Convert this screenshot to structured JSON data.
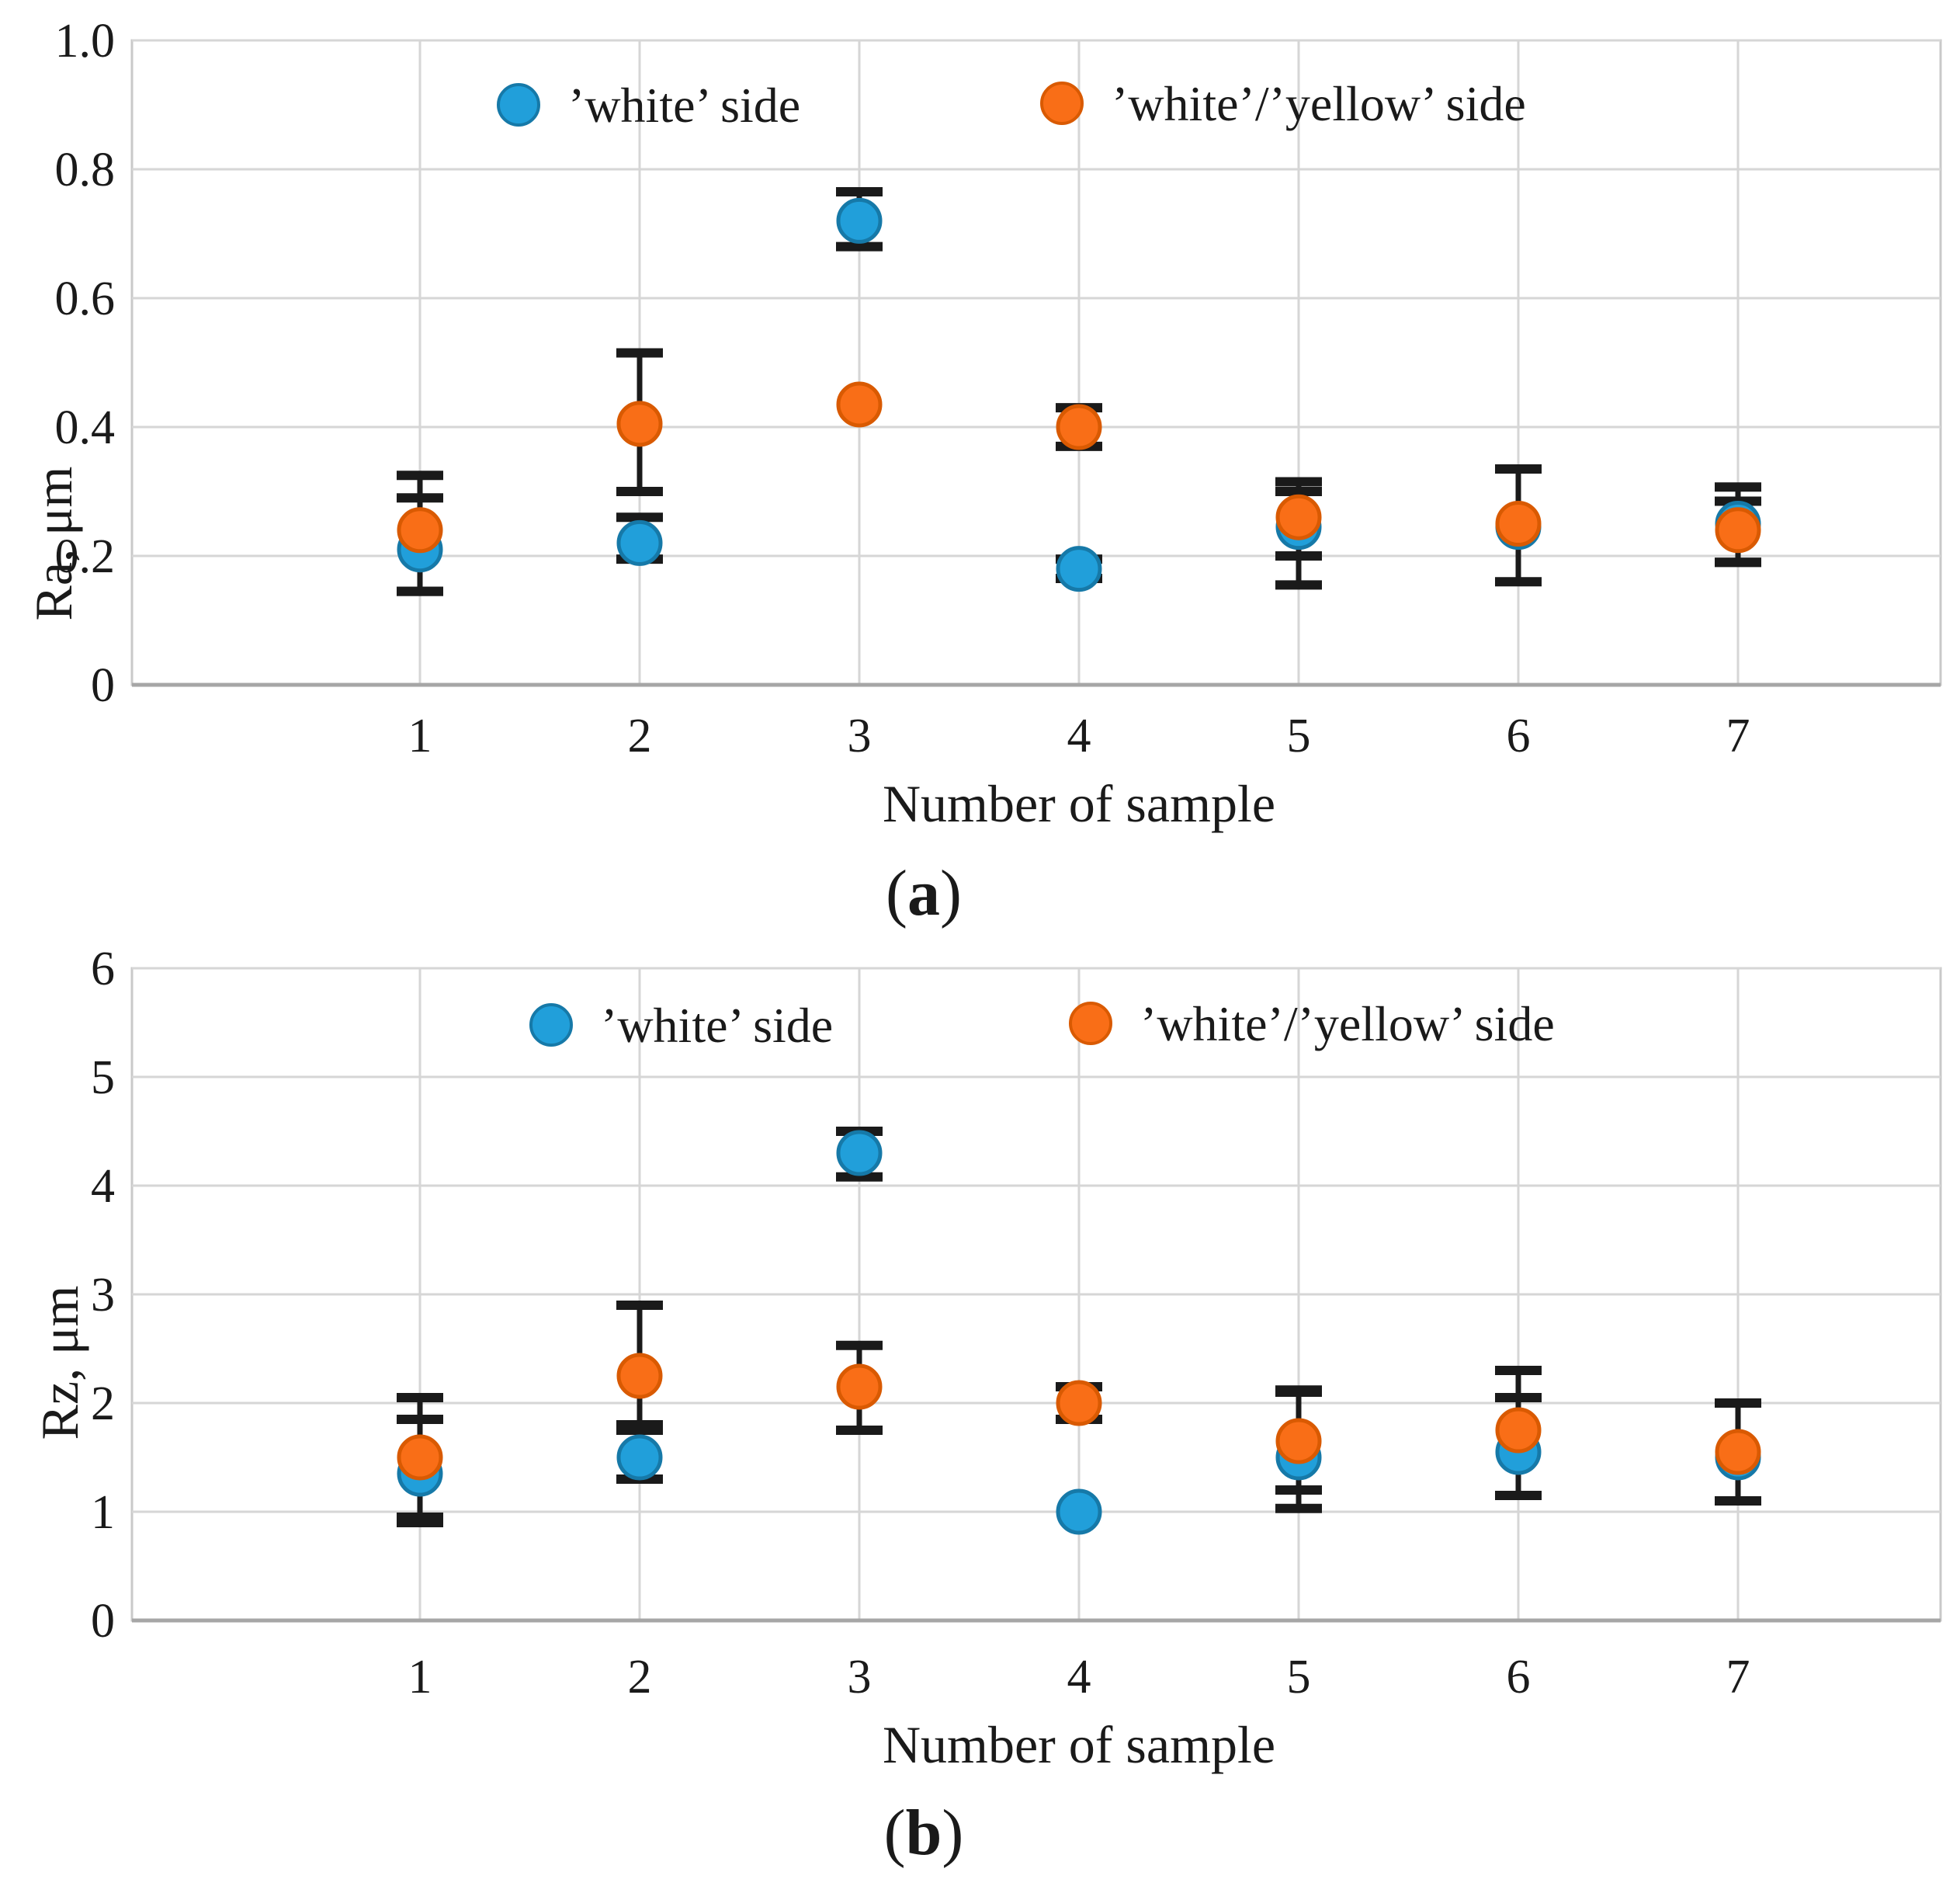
{
  "figure": {
    "background": "#FFFFFF",
    "colors": {
      "white_side": "#219FDA",
      "white_side_stroke": "#1679A8",
      "white_yellow_side": "#F96E17",
      "white_yellow_side_stroke": "#D95A02",
      "error_bar": "#1A1A1A",
      "gridline": "#D6D6D6",
      "plot_border": "#C9C9C9",
      "axis_line": "#A6A6A6"
    }
  },
  "chart_data": [
    {
      "id": "a",
      "type": "scatter",
      "caption": {
        "open": "(",
        "letter": "a",
        "close": ")"
      },
      "xlabel": "Number of sample",
      "ylabel": "Ra, μm",
      "ylim": [
        0,
        1.0
      ],
      "grid": true,
      "legend_position": "top-inside",
      "yticks": [
        {
          "v": 0,
          "label": "0"
        },
        {
          "v": 0.2,
          "label": "0.2"
        },
        {
          "v": 0.4,
          "label": "0.4"
        },
        {
          "v": 0.6,
          "label": "0.6"
        },
        {
          "v": 0.8,
          "label": "0.8"
        },
        {
          "v": 1.0,
          "label": "1.0"
        }
      ],
      "categories": [
        "1",
        "2",
        "3",
        "4",
        "5",
        "6",
        "7"
      ],
      "series": [
        {
          "name": "’white’ side",
          "color_key": "white_side",
          "values": [
            0.21,
            0.22,
            0.72,
            0.18,
            0.245,
            0.245,
            0.25
          ],
          "error_lo": [
            0.145,
            0.195,
            0.68,
            0.165,
            0.155,
            null,
            0.19
          ],
          "error_hi": [
            0.29,
            0.26,
            0.765,
            0.195,
            0.3,
            null,
            0.307
          ]
        },
        {
          "name": "’white’/’yellow’ side",
          "color_key": "white_yellow_side",
          "values": [
            0.24,
            0.405,
            0.435,
            0.4,
            0.26,
            0.25,
            0.24
          ],
          "error_lo": [
            0.145,
            0.3,
            null,
            0.37,
            0.2,
            0.16,
            0.19
          ],
          "error_hi": [
            0.325,
            0.515,
            null,
            0.43,
            0.315,
            0.335,
            0.285
          ]
        }
      ]
    },
    {
      "id": "b",
      "type": "scatter",
      "caption": {
        "open": "(",
        "letter": "b",
        "close": ")"
      },
      "xlabel": "Number of sample",
      "ylabel": "Rz, μm",
      "ylim": [
        0,
        6
      ],
      "grid": true,
      "legend_position": "top-inside",
      "yticks": [
        {
          "v": 0,
          "label": "0"
        },
        {
          "v": 1,
          "label": "1"
        },
        {
          "v": 2,
          "label": "2"
        },
        {
          "v": 3,
          "label": "3"
        },
        {
          "v": 4,
          "label": "4"
        },
        {
          "v": 5,
          "label": "5"
        },
        {
          "v": 6,
          "label": "6"
        }
      ],
      "categories": [
        "1",
        "2",
        "3",
        "4",
        "5",
        "6",
        "7"
      ],
      "series": [
        {
          "name": "’white’ side",
          "color_key": "white_side",
          "values": [
            1.35,
            1.5,
            4.3,
            1.0,
            1.5,
            1.55,
            1.5
          ],
          "error_lo": [
            0.9,
            1.3,
            4.08,
            null,
            1.2,
            1.15,
            1.1
          ],
          "error_hi": [
            1.85,
            1.8,
            4.5,
            null,
            2.1,
            2.05,
            2.0
          ]
        },
        {
          "name": "’white’/’yellow’ side",
          "color_key": "white_yellow_side",
          "values": [
            1.5,
            2.25,
            2.15,
            2.0,
            1.65,
            1.75,
            1.55
          ],
          "error_lo": [
            0.95,
            1.75,
            1.75,
            1.85,
            1.03,
            1.15,
            1.1
          ],
          "error_hi": [
            2.05,
            2.9,
            2.53,
            2.15,
            2.12,
            2.3,
            2.0
          ]
        }
      ]
    }
  ]
}
